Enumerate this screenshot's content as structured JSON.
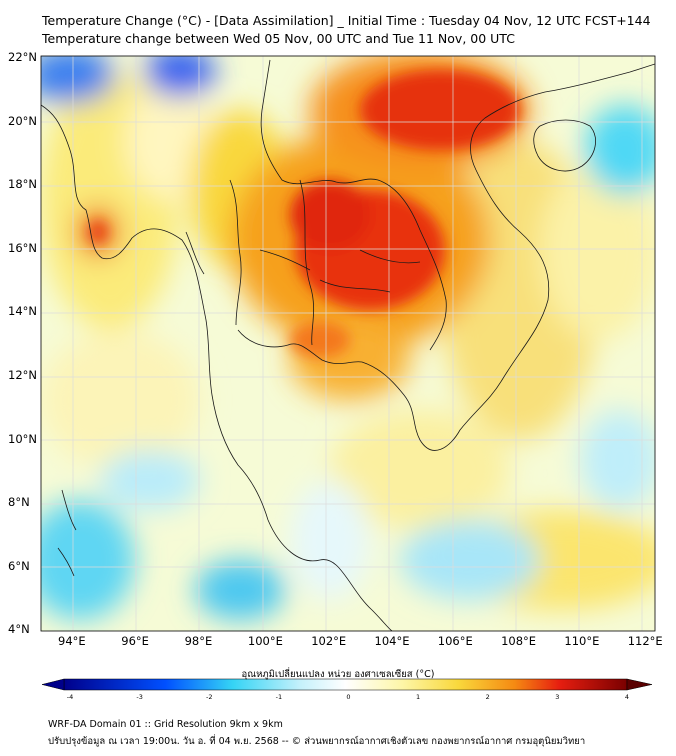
{
  "title_line1": "Temperature Change (°C) - [Data Assimilation] _ Initial Time : Tuesday 04 Nov, 12 UTC FCST+144",
  "title_line2": "Temperature change between Wed 05 Nov, 00 UTC and Tue 11 Nov, 00 UTC",
  "lat_labels": [
    "22°N",
    "20°N",
    "18°N",
    "16°N",
    "14°N",
    "12°N",
    "10°N",
    "8°N",
    "6°N",
    "4°N"
  ],
  "lon_labels": [
    "94°E",
    "96°E",
    "98°E",
    "100°E",
    "102°E",
    "104°E",
    "106°E",
    "108°E",
    "110°E",
    "112°E"
  ],
  "colorbar": {
    "title": "อุณหภูมิเปลี่ยนแปลง หน่วย องศาเซลเซียส (°C)",
    "min": -4,
    "max": 4,
    "ticks": [
      "-4",
      "-3",
      "-2",
      "-1",
      "0",
      "1",
      "2",
      "3",
      "4"
    ],
    "colors": {
      "dark_blue": "#00008b",
      "blue": "#0050ff",
      "cyan": "#35d4f5",
      "light_cyan": "#c5f1fb",
      "white": "#ffffff",
      "light_yellow": "#fdf6a8",
      "yellow": "#f9d83c",
      "orange": "#f58a12",
      "red": "#e61e10",
      "dark_red": "#7a0000"
    }
  },
  "map_colors": {
    "ocean_bg": "#f4fbe0",
    "coastline": "#1a1a1a",
    "grid": "#dcdcdc"
  },
  "footer_line1": "WRF-DA Domain 01 :: Grid Resolution 9km x 9km",
  "footer_line2": "ปรับปรุงข้อมูล ณ เวลา 19:00น. วัน อ. ที่ 04 พ.ย. 2568 -- © ส่วนพยากรณ์อากาศเชิงตัวเลข กองพยากรณ์อากาศ กรมอุตุนิยมวิทยา"
}
